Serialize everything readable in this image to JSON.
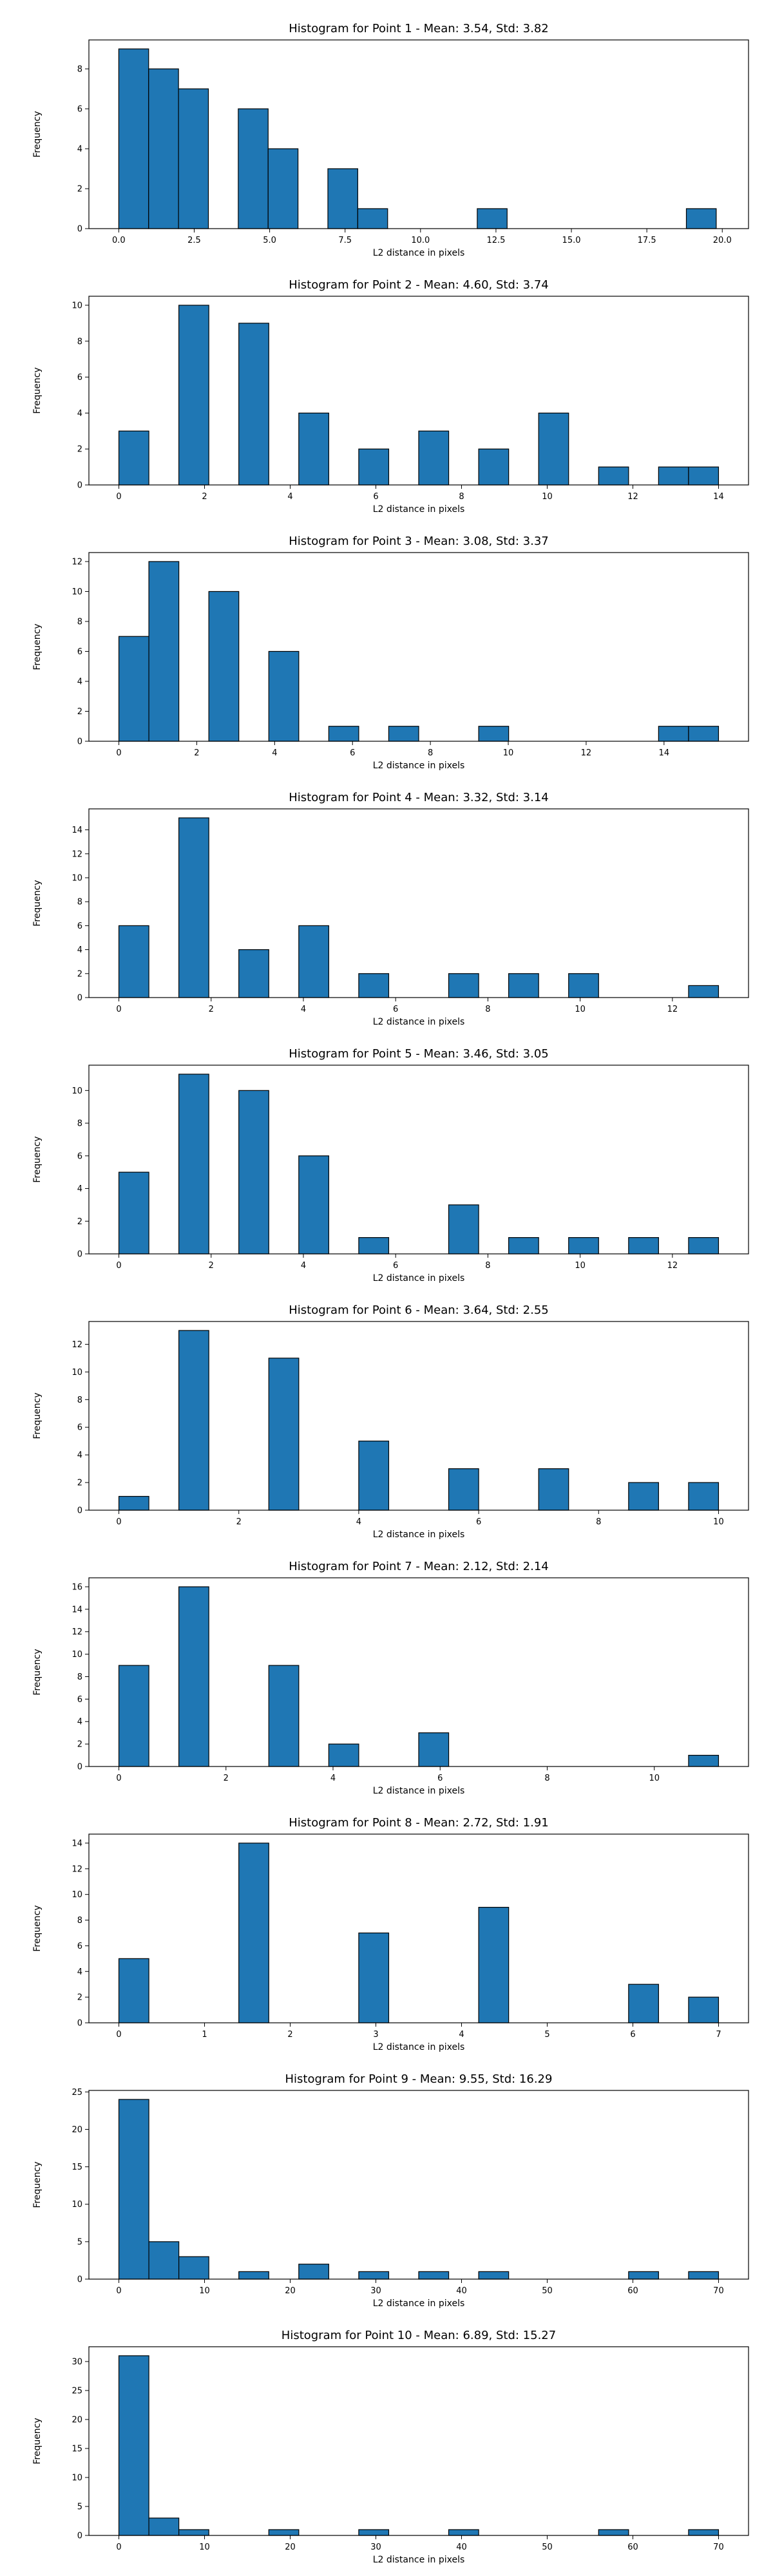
{
  "chart_data": [
    {
      "type": "bar",
      "title": "Histogram for Point 1 - Mean: 3.54, Std: 3.82",
      "xlabel": "L2 distance in pixels",
      "ylabel": "Frequency",
      "xlim": [
        -0.99,
        20.87
      ],
      "ylim": [
        0,
        9.45
      ],
      "xticks": [
        0.0,
        2.5,
        5.0,
        7.5,
        10.0,
        12.5,
        15.0,
        17.5,
        20.0
      ],
      "xtick_labels": [
        "0.0",
        "2.5",
        "5.0",
        "7.5",
        "10.0",
        "12.5",
        "15.0",
        "17.5",
        "20.0"
      ],
      "yticks": [
        0,
        2,
        4,
        6,
        8
      ],
      "bin_edges": [
        0.0,
        0.99,
        1.98,
        2.97,
        3.96,
        4.95,
        5.94,
        6.93,
        7.92,
        8.91,
        9.9,
        10.89,
        11.88,
        12.87,
        13.86,
        14.85,
        15.84,
        16.83,
        17.82,
        18.81,
        19.8
      ],
      "values": [
        9,
        8,
        7,
        0,
        6,
        4,
        0,
        3,
        1,
        0,
        0,
        0,
        1,
        0,
        0,
        0,
        0,
        0,
        0,
        1
      ]
    },
    {
      "type": "bar",
      "title": "Histogram for Point 2 - Mean: 4.60, Std: 3.74",
      "xlabel": "L2 distance in pixels",
      "ylabel": "Frequency",
      "xlim": [
        -0.7,
        14.7
      ],
      "ylim": [
        0,
        10.5
      ],
      "xticks": [
        0,
        2,
        4,
        6,
        8,
        10,
        12,
        14
      ],
      "xtick_labels": [
        "0",
        "2",
        "4",
        "6",
        "8",
        "10",
        "12",
        "14"
      ],
      "yticks": [
        0,
        2,
        4,
        6,
        8,
        10
      ],
      "bin_edges": [
        0.0,
        0.7,
        1.4,
        2.1,
        2.8,
        3.5,
        4.2,
        4.9,
        5.6,
        6.3,
        7.0,
        7.7,
        8.4,
        9.1,
        9.8,
        10.5,
        11.2,
        11.9,
        12.6,
        13.3,
        14.0
      ],
      "values": [
        3,
        0,
        10,
        0,
        9,
        0,
        4,
        0,
        2,
        0,
        3,
        0,
        2,
        0,
        4,
        0,
        1,
        0,
        1,
        1
      ]
    },
    {
      "type": "bar",
      "title": "Histogram for Point 3 - Mean: 3.08, Std: 3.37",
      "xlabel": "L2 distance in pixels",
      "ylabel": "Frequency",
      "xlim": [
        -0.77,
        16.17
      ],
      "ylim": [
        0,
        12.6
      ],
      "xticks": [
        0,
        2,
        4,
        6,
        8,
        10,
        12,
        14
      ],
      "xtick_labels": [
        "0",
        "2",
        "4",
        "6",
        "8",
        "10",
        "12",
        "14"
      ],
      "yticks": [
        0,
        2,
        4,
        6,
        8,
        10,
        12
      ],
      "bin_edges": [
        0.0,
        0.77,
        1.54,
        2.31,
        3.08,
        3.85,
        4.62,
        5.39,
        6.16,
        6.93,
        7.7,
        8.47,
        9.24,
        10.01,
        10.78,
        11.55,
        12.32,
        13.09,
        13.86,
        14.63,
        15.4
      ],
      "values": [
        7,
        12,
        0,
        10,
        0,
        6,
        0,
        1,
        0,
        1,
        0,
        0,
        1,
        0,
        0,
        0,
        0,
        0,
        1,
        1
      ]
    },
    {
      "type": "bar",
      "title": "Histogram for Point 4 - Mean: 3.32, Std: 3.14",
      "xlabel": "L2 distance in pixels",
      "ylabel": "Frequency",
      "xlim": [
        -0.65,
        13.65
      ],
      "ylim": [
        0,
        15.75
      ],
      "xticks": [
        0,
        2,
        4,
        6,
        8,
        10,
        12
      ],
      "xtick_labels": [
        "0",
        "2",
        "4",
        "6",
        "8",
        "10",
        "12"
      ],
      "yticks": [
        0,
        2,
        4,
        6,
        8,
        10,
        12,
        14
      ],
      "bin_edges": [
        0.0,
        0.65,
        1.3,
        1.95,
        2.6,
        3.25,
        3.9,
        4.55,
        5.2,
        5.85,
        6.5,
        7.15,
        7.8,
        8.45,
        9.1,
        9.75,
        10.4,
        11.05,
        11.7,
        12.35,
        13.0
      ],
      "values": [
        6,
        0,
        15,
        0,
        4,
        0,
        6,
        0,
        2,
        0,
        0,
        2,
        0,
        2,
        0,
        2,
        0,
        0,
        0,
        1
      ]
    },
    {
      "type": "bar",
      "title": "Histogram for Point 5 - Mean: 3.46, Std: 3.05",
      "xlabel": "L2 distance in pixels",
      "ylabel": "Frequency",
      "xlim": [
        -0.65,
        13.65
      ],
      "ylim": [
        0,
        11.55
      ],
      "xticks": [
        0,
        2,
        4,
        6,
        8,
        10,
        12
      ],
      "xtick_labels": [
        "0",
        "2",
        "4",
        "6",
        "8",
        "10",
        "12"
      ],
      "yticks": [
        0,
        2,
        4,
        6,
        8,
        10
      ],
      "bin_edges": [
        0.0,
        0.65,
        1.3,
        1.95,
        2.6,
        3.25,
        3.9,
        4.55,
        5.2,
        5.85,
        6.5,
        7.15,
        7.8,
        8.45,
        9.1,
        9.75,
        10.4,
        11.05,
        11.7,
        12.35,
        13.0
      ],
      "values": [
        5,
        0,
        11,
        0,
        10,
        0,
        6,
        0,
        1,
        0,
        0,
        3,
        0,
        1,
        0,
        1,
        0,
        1,
        0,
        1
      ]
    },
    {
      "type": "bar",
      "title": "Histogram for Point 6 - Mean: 3.64, Std: 2.55",
      "xlabel": "L2 distance in pixels",
      "ylabel": "Frequency",
      "xlim": [
        -0.5,
        10.5
      ],
      "ylim": [
        0,
        13.65
      ],
      "xticks": [
        0,
        2,
        4,
        6,
        8,
        10
      ],
      "xtick_labels": [
        "0",
        "2",
        "4",
        "6",
        "8",
        "10"
      ],
      "yticks": [
        0,
        2,
        4,
        6,
        8,
        10,
        12
      ],
      "bin_edges": [
        0.0,
        0.5,
        1.0,
        1.5,
        2.0,
        2.5,
        3.0,
        3.5,
        4.0,
        4.5,
        5.0,
        5.5,
        6.0,
        6.5,
        7.0,
        7.5,
        8.0,
        8.5,
        9.0,
        9.5,
        10.0
      ],
      "values": [
        1,
        0,
        13,
        0,
        0,
        11,
        0,
        0,
        5,
        0,
        0,
        3,
        0,
        0,
        3,
        0,
        0,
        2,
        0,
        2
      ]
    },
    {
      "type": "bar",
      "title": "Histogram for Point 7 - Mean: 2.12, Std: 2.14",
      "xlabel": "L2 distance in pixels",
      "ylabel": "Frequency",
      "xlim": [
        -0.56,
        11.76
      ],
      "ylim": [
        0,
        16.8
      ],
      "xticks": [
        0,
        2,
        4,
        6,
        8,
        10
      ],
      "xtick_labels": [
        "0",
        "2",
        "4",
        "6",
        "8",
        "10"
      ],
      "yticks": [
        0,
        2,
        4,
        6,
        8,
        10,
        12,
        14,
        16
      ],
      "bin_edges": [
        0.0,
        0.56,
        1.12,
        1.68,
        2.24,
        2.8,
        3.36,
        3.92,
        4.48,
        5.04,
        5.6,
        6.16,
        6.72,
        7.28,
        7.84,
        8.4,
        8.96,
        9.52,
        10.08,
        10.64,
        11.2
      ],
      "values": [
        9,
        0,
        16,
        0,
        0,
        9,
        0,
        2,
        0,
        0,
        3,
        0,
        0,
        0,
        0,
        0,
        0,
        0,
        0,
        1
      ]
    },
    {
      "type": "bar",
      "title": "Histogram for Point 8 - Mean: 2.72, Std: 1.91",
      "xlabel": "L2 distance in pixels",
      "ylabel": "Frequency",
      "xlim": [
        -0.35,
        7.35
      ],
      "ylim": [
        0,
        14.7
      ],
      "xticks": [
        0,
        1,
        2,
        3,
        4,
        5,
        6,
        7
      ],
      "xtick_labels": [
        "0",
        "1",
        "2",
        "3",
        "4",
        "5",
        "6",
        "7"
      ],
      "yticks": [
        0,
        2,
        4,
        6,
        8,
        10,
        12,
        14
      ],
      "bin_edges": [
        0.0,
        0.35,
        0.7,
        1.05,
        1.4,
        1.75,
        2.1,
        2.45,
        2.8,
        3.15,
        3.5,
        3.85,
        4.2,
        4.55,
        4.9,
        5.25,
        5.6,
        5.95,
        6.3,
        6.65,
        7.0
      ],
      "values": [
        5,
        0,
        0,
        0,
        14,
        0,
        0,
        0,
        7,
        0,
        0,
        0,
        9,
        0,
        0,
        0,
        0,
        3,
        0,
        2
      ]
    },
    {
      "type": "bar",
      "title": "Histogram for Point 9 - Mean: 9.55, Std: 16.29",
      "xlabel": "L2 distance in pixels",
      "ylabel": "Frequency",
      "xlim": [
        -3.5,
        73.5
      ],
      "ylim": [
        0,
        25.2
      ],
      "xticks": [
        0,
        10,
        20,
        30,
        40,
        50,
        60,
        70
      ],
      "xtick_labels": [
        "0",
        "10",
        "20",
        "30",
        "40",
        "50",
        "60",
        "70"
      ],
      "yticks": [
        0,
        5,
        10,
        15,
        20,
        25
      ],
      "bin_edges": [
        0.0,
        3.5,
        7.0,
        10.5,
        14.0,
        17.5,
        21.0,
        24.5,
        28.0,
        31.5,
        35.0,
        38.5,
        42.0,
        45.5,
        49.0,
        52.5,
        56.0,
        59.5,
        63.0,
        66.5,
        70.0
      ],
      "values": [
        24,
        5,
        3,
        0,
        1,
        0,
        2,
        0,
        1,
        0,
        1,
        0,
        1,
        0,
        0,
        0,
        0,
        1,
        0,
        1
      ]
    },
    {
      "type": "bar",
      "title": "Histogram for Point 10 - Mean: 6.89, Std: 15.27",
      "xlabel": "L2 distance in pixels",
      "ylabel": "Frequency",
      "xlim": [
        -3.5,
        73.5
      ],
      "ylim": [
        0,
        32.55
      ],
      "xticks": [
        0,
        10,
        20,
        30,
        40,
        50,
        60,
        70
      ],
      "xtick_labels": [
        "0",
        "10",
        "20",
        "30",
        "40",
        "50",
        "60",
        "70"
      ],
      "yticks": [
        0,
        5,
        10,
        15,
        20,
        25,
        30
      ],
      "bin_edges": [
        0.0,
        3.5,
        7.0,
        10.5,
        14.0,
        17.5,
        21.0,
        24.5,
        28.0,
        31.5,
        35.0,
        38.5,
        42.0,
        45.5,
        49.0,
        52.5,
        56.0,
        59.5,
        63.0,
        66.5,
        70.0
      ],
      "values": [
        31,
        3,
        1,
        0,
        0,
        1,
        0,
        0,
        1,
        0,
        0,
        1,
        0,
        0,
        0,
        0,
        1,
        0,
        0,
        1
      ]
    }
  ]
}
